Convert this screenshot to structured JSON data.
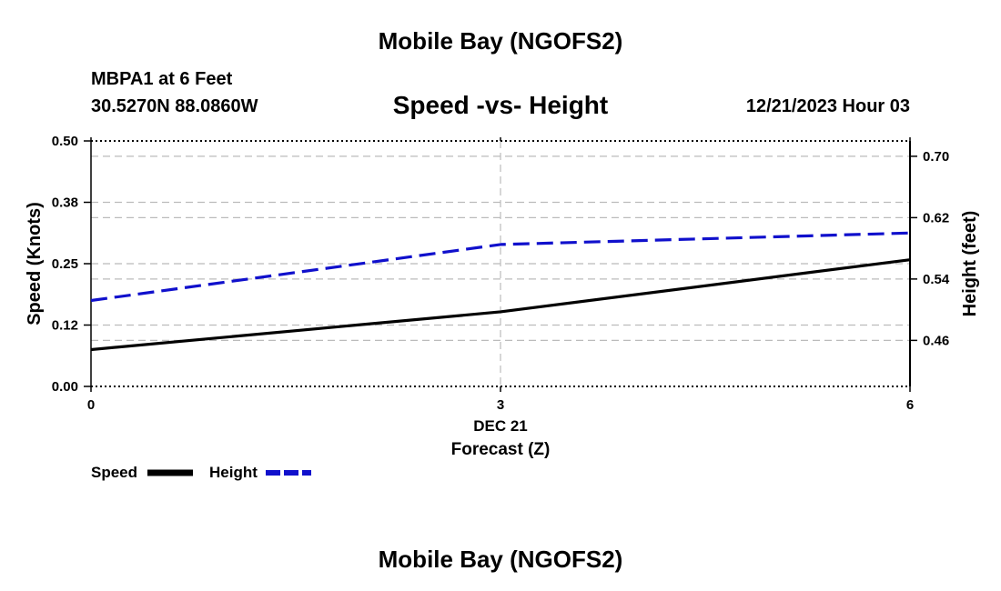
{
  "page": {
    "main_title": "Mobile Bay (NGOFS2)",
    "station": "MBPA1 at 6 Feet",
    "coords": "30.5270N  88.0860W",
    "subtitle": "Speed -vs- Height",
    "datetime": "12/21/2023 Hour 03",
    "bottom_title": "Mobile Bay (NGOFS2)"
  },
  "colors": {
    "speed": "#000000",
    "height": "#1010cc",
    "grid": "#bbbbbb"
  },
  "chart_data": {
    "type": "line",
    "title": "Speed -vs- Height",
    "xlabel": "Forecast (Z)",
    "xlabel_date": "DEC 21",
    "ylabel": "Speed (Knots)",
    "y2label": "Height (feet)",
    "x": [
      0,
      3,
      6
    ],
    "xlim": [
      0,
      6
    ],
    "x_ticks": [
      "0",
      "3",
      "6"
    ],
    "ylim": [
      0,
      0.5
    ],
    "y_ticks": [
      "0.00",
      "0.12",
      "0.25",
      "0.38",
      "0.50"
    ],
    "y_tick_values": [
      0,
      0.125,
      0.25,
      0.375,
      0.5
    ],
    "y2lim": [
      0.4,
      0.72
    ],
    "y2_ticks": [
      "0.46",
      "0.54",
      "0.62",
      "0.70"
    ],
    "y2_tick_values": [
      0.46,
      0.54,
      0.62,
      0.7
    ],
    "series": [
      {
        "name": "Speed",
        "axis": "left",
        "style": "solid",
        "values": [
          0.075,
          0.152,
          0.258
        ]
      },
      {
        "name": "Height",
        "axis": "right",
        "style": "dashed",
        "values": [
          0.512,
          0.585,
          0.6
        ]
      }
    ],
    "legend": [
      "Speed",
      "Height"
    ],
    "legend_position": "bottom-left",
    "grid": true
  }
}
